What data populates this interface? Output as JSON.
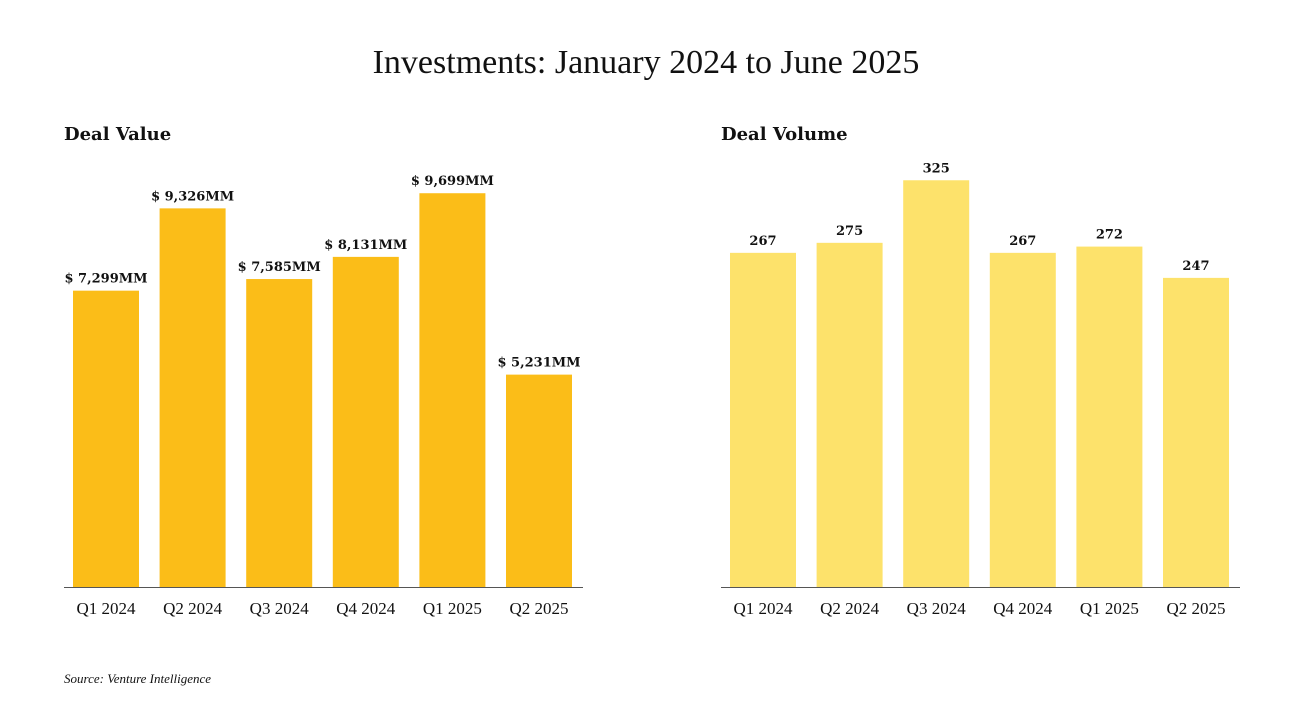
{
  "title": "Investments: January 2024 to June 2025",
  "source": "Source: Venture Intelligence",
  "chart_data": [
    {
      "type": "bar",
      "title": "Deal Value",
      "categories": [
        "Q1 2024",
        "Q2 2024",
        "Q3 2024",
        "Q4 2024",
        "Q1 2025",
        "Q2 2025"
      ],
      "values": [
        7299,
        9326,
        7585,
        8131,
        9699,
        5231
      ],
      "data_labels": [
        "$  7,299MM",
        "$  9,326MM",
        "$  7,585MM",
        "$  8,131MM",
        "$  9,699MM",
        "$  5,231MM"
      ],
      "unit": "MM",
      "ylim": [
        0,
        10000
      ],
      "grid": false,
      "bar_color": "#FBBD18"
    },
    {
      "type": "bar",
      "title": "Deal Volume",
      "categories": [
        "Q1 2024",
        "Q2 2024",
        "Q3 2024",
        "Q4 2024",
        "Q1 2025",
        "Q2 2025"
      ],
      "values": [
        267,
        275,
        325,
        267,
        272,
        247
      ],
      "data_labels": [
        "267",
        "275",
        "325",
        "267",
        "272",
        "247"
      ],
      "ylim": [
        0,
        330
      ],
      "grid": false,
      "bar_color": "#FDE26B"
    }
  ]
}
